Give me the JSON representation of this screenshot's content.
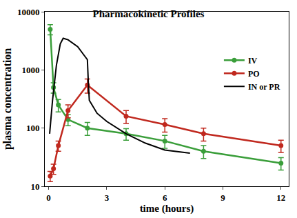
{
  "chart_data": {
    "type": "line",
    "title": "Pharmacokinetic Profiles",
    "x_label": "time (hours)",
    "y_label": "plasma concentration",
    "log": "y",
    "grid": false,
    "legend": "upper right",
    "xlim": [
      -0.2,
      12.4
    ],
    "xticks": [
      0,
      3,
      6,
      9,
      12
    ],
    "ylim": [
      10,
      10000
    ],
    "yticks": [
      10,
      100,
      1000,
      10000
    ],
    "series": [
      {
        "name": "IV",
        "color": "#3a9e3a",
        "marker": "circle",
        "line_style": "solid",
        "x": [
          0.08,
          0.25,
          0.5,
          1,
          2,
          4,
          6,
          8,
          12
        ],
        "values": [
          5000,
          500,
          250,
          140,
          100,
          80,
          60,
          40,
          25
        ],
        "errors": [
          1000,
          100,
          60,
          30,
          25,
          18,
          15,
          10,
          6
        ]
      },
      {
        "name": "PO",
        "color": "#c0281e",
        "marker": "circle",
        "line_style": "solid",
        "x": [
          0.08,
          0.25,
          0.5,
          1,
          2,
          4,
          6,
          8,
          12
        ],
        "values": [
          15,
          20,
          50,
          200,
          550,
          160,
          115,
          80,
          50
        ],
        "errors": [
          3,
          4,
          10,
          50,
          150,
          40,
          30,
          20,
          12
        ]
      },
      {
        "name": "IN or PR",
        "color": "#000000",
        "marker": "none",
        "line_style": "solid",
        "x": [
          0.05,
          0.2,
          0.4,
          0.6,
          0.75,
          1.0,
          1.5,
          2.0,
          2.05,
          2.1,
          2.5,
          3,
          4,
          5,
          6,
          7.3
        ],
        "values": [
          80,
          300,
          1200,
          2800,
          3500,
          3300,
          2500,
          1500,
          600,
          300,
          180,
          130,
          80,
          55,
          42,
          37
        ]
      }
    ]
  }
}
